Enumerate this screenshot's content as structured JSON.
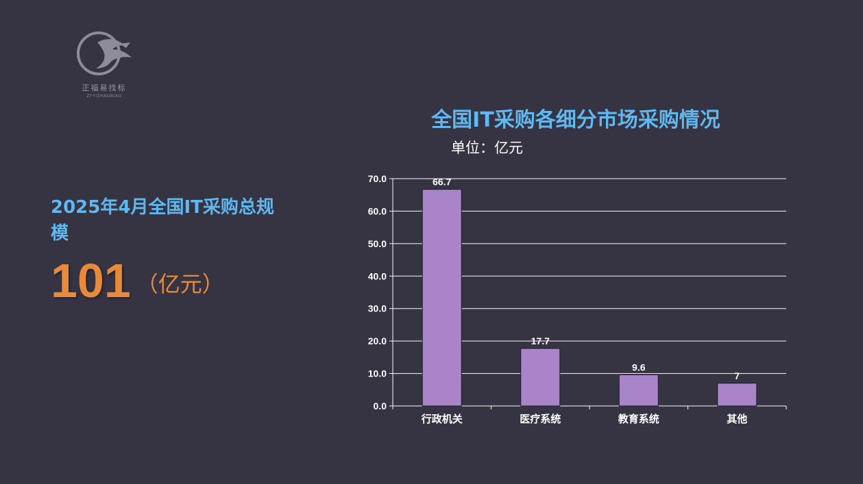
{
  "logo": {
    "name_cn": "正福易找标",
    "name_en": "ZFYIZHAOBIAO"
  },
  "summary": {
    "title": "2025年4月全国IT采购总规模",
    "value": "101",
    "unit": "（亿元）"
  },
  "chart_data": {
    "type": "bar",
    "title": "全国IT采购各细分市场采购情况",
    "unit_label": "单位：亿元",
    "categories": [
      "行政机关",
      "医疗系统",
      "教育系统",
      "其他"
    ],
    "values": [
      66.7,
      17.7,
      9.6,
      7
    ],
    "value_labels": [
      "66.7",
      "17.7",
      "9.6",
      "7"
    ],
    "ylim": [
      0,
      70
    ],
    "yticks": [
      "0.0",
      "10.0",
      "20.0",
      "30.0",
      "40.0",
      "50.0",
      "60.0",
      "70.0"
    ],
    "grid": true,
    "legend": "none",
    "bar_color": "#a984c8",
    "axis_color": "#ffffff"
  },
  "colors": {
    "background": "#363343",
    "title_blue": "#5fb8f0",
    "accent_orange": "#e88a3c"
  }
}
